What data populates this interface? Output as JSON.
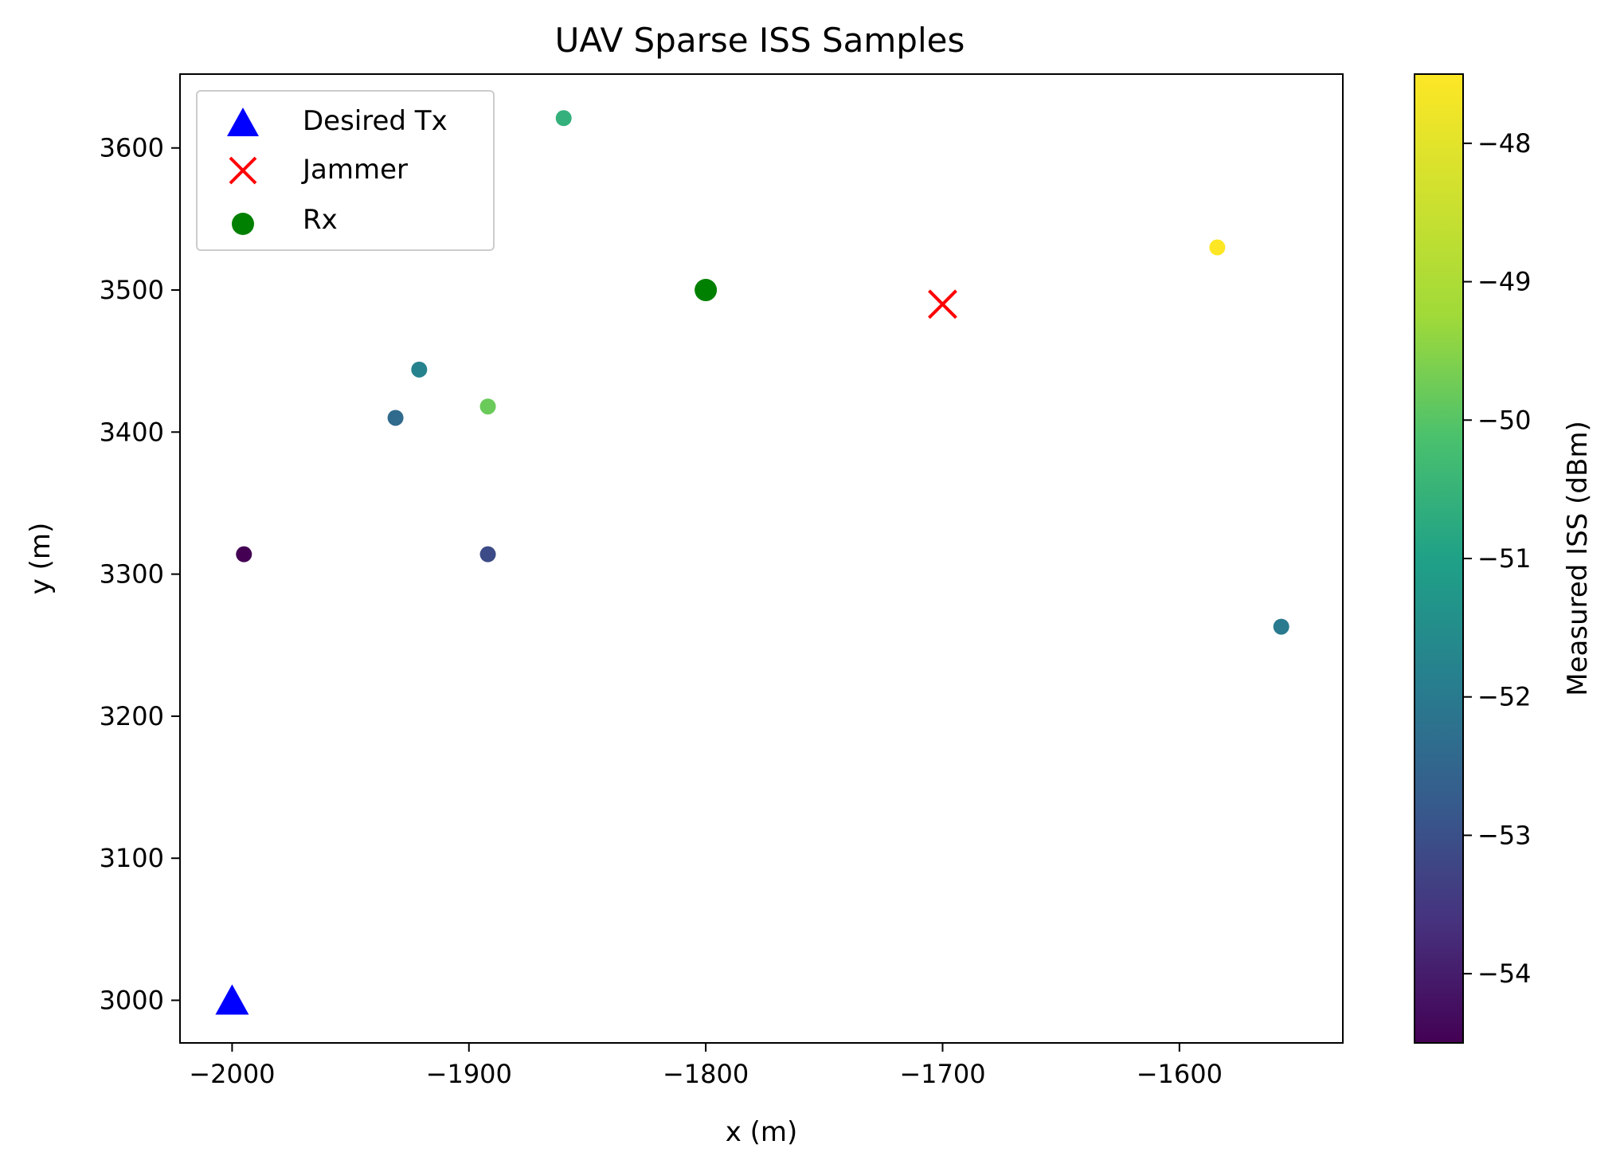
{
  "chart_data": {
    "type": "scatter",
    "title": "UAV Sparse ISS Samples",
    "xlabel": "x (m)",
    "ylabel": "y (m)",
    "xlim": [
      -2022,
      -1531
    ],
    "ylim": [
      2970,
      3652
    ],
    "xticks": [
      -2000,
      -1900,
      -1800,
      -1700,
      -1600
    ],
    "yticks": [
      3000,
      3100,
      3200,
      3300,
      3400,
      3500,
      3600
    ],
    "x_tick_labels": [
      "−2000",
      "−1900",
      "−1800",
      "−1700",
      "−1600"
    ],
    "y_tick_labels": [
      "3000",
      "3100",
      "3200",
      "3300",
      "3400",
      "3500",
      "3600"
    ],
    "grid": false,
    "legend_position": "top-left",
    "legend": [
      {
        "label": "Desired Tx",
        "marker": "triangle",
        "color": "#0000ff"
      },
      {
        "label": "Jammer",
        "marker": "x",
        "color": "#ff0000"
      },
      {
        "label": "Rx",
        "marker": "circle",
        "color": "#008000"
      }
    ],
    "markers": [
      {
        "name": "Desired Tx",
        "x": -2000,
        "y": 3000
      },
      {
        "name": "Jammer",
        "x": -1700,
        "y": 3490
      },
      {
        "name": "Rx",
        "x": -1800,
        "y": 3500
      }
    ],
    "samples": [
      {
        "x": -1995,
        "y": 3314,
        "iss": -54.5
      },
      {
        "x": -1931,
        "y": 3410,
        "iss": -52.4
      },
      {
        "x": -1921,
        "y": 3444,
        "iss": -51.8
      },
      {
        "x": -1892,
        "y": 3418,
        "iss": -49.8
      },
      {
        "x": -1892,
        "y": 3314,
        "iss": -53.1
      },
      {
        "x": -1860,
        "y": 3621,
        "iss": -50.6
      },
      {
        "x": -1584,
        "y": 3530,
        "iss": -47.5
      },
      {
        "x": -1557,
        "y": 3263,
        "iss": -52.0
      }
    ],
    "colorbar": {
      "label": "Measured ISS (dBm)",
      "colormap": "viridis",
      "range": [
        -54.5,
        -47.5
      ],
      "ticks": [
        -48,
        -49,
        -50,
        -51,
        -52,
        -53,
        -54
      ],
      "tick_labels": [
        "−48",
        "−49",
        "−50",
        "−51",
        "−52",
        "−53",
        "−54"
      ]
    }
  }
}
